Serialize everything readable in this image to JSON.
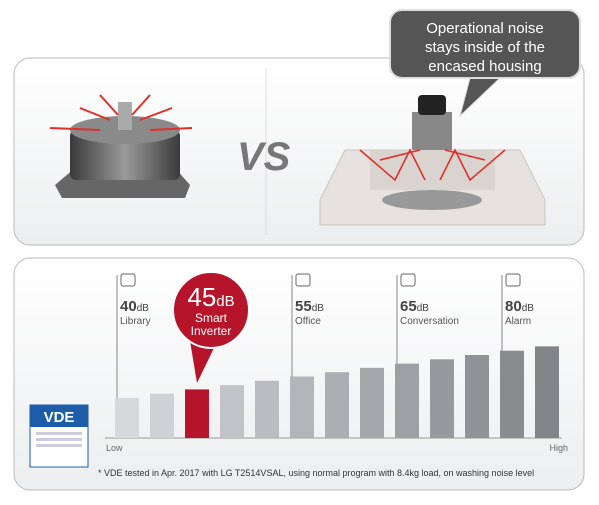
{
  "callout": [
    "Operational noise",
    "stays inside of the",
    "encased housing"
  ],
  "vs": "VS",
  "highlight": {
    "value": "45",
    "unit": "dB",
    "label": [
      "Smart",
      "Inverter"
    ]
  },
  "levels": [
    {
      "value": "40",
      "unit": "dB",
      "label": "Library"
    },
    {
      "value": "55",
      "unit": "dB",
      "label": "Office"
    },
    {
      "value": "65",
      "unit": "dB",
      "label": "Conversation"
    },
    {
      "value": "80",
      "unit": "dB",
      "label": "Alarm"
    }
  ],
  "axis": {
    "low": "Low",
    "high": "High"
  },
  "badge": "VDE",
  "footnote": "* VDE tested in Apr. 2017 with LG T2514VSAL, using normal program with 8.4kg load, on washing noise level"
}
